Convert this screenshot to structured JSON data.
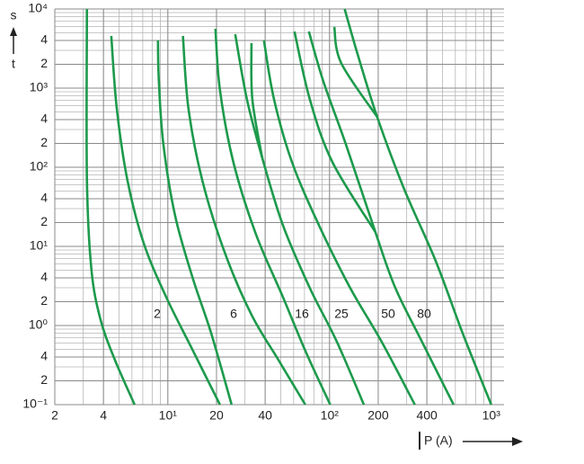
{
  "chart_data": {
    "type": "line",
    "log_x": true,
    "log_y": true,
    "grid": true,
    "color": "#1d9a4c",
    "x_label": "P (A)",
    "y_label_top": "s",
    "y_label_bottom": "t",
    "xlim": [
      2,
      1200
    ],
    "ylim": [
      0.1,
      10000
    ],
    "xticks": [
      2,
      4,
      {
        "value": 10,
        "label": "10¹"
      },
      20,
      40,
      {
        "value": 100,
        "label": "10²"
      },
      200,
      400,
      {
        "value": 1000,
        "label": "10³"
      }
    ],
    "yticks": [
      {
        "value": 0.1,
        "label": "10⁻¹"
      },
      {
        "value": 0.2,
        "label": "2"
      },
      {
        "value": 0.4,
        "label": "4"
      },
      {
        "value": 1,
        "label": "10⁰"
      },
      2,
      4,
      {
        "value": 10,
        "label": "10¹"
      },
      {
        "value": 20,
        "label": "2"
      },
      {
        "value": 40,
        "label": "4"
      },
      {
        "value": 100,
        "label": "10²"
      },
      {
        "value": 200,
        "label": "2"
      },
      {
        "value": 400,
        "label": "4"
      },
      {
        "value": 1000,
        "label": "10³"
      },
      {
        "value": 2000,
        "label": "2"
      },
      {
        "value": 4000,
        "label": "4"
      },
      {
        "value": 10000,
        "label": "10⁴"
      }
    ],
    "annotations": [
      "2",
      "6",
      "16",
      "25",
      "50",
      "80"
    ],
    "series": [
      {
        "x": [
          3.16,
          3.16,
          3.37,
          3.83,
          4.7,
          6.23
        ],
        "values": [
          10000,
          69.4,
          5.07,
          1.2,
          0.37,
          0.1
        ]
      },
      {
        "x": [
          4.47,
          4.83,
          5.62,
          7.08,
          9.75,
          14.3,
          21.0
        ],
        "values": [
          4560,
          562,
          69.4,
          11.1,
          2.31,
          0.481,
          0.1
        ]
      },
      {
        "x": [
          8.69,
          8.8,
          9.38,
          11.1,
          14.3,
          18.5,
          24.8
        ],
        "values": [
          4000,
          1230,
          197,
          24.3,
          3.9,
          0.81,
          0.1
        ]
      },
      {
        "x": [
          12.4,
          13.4,
          16.3,
          22.4,
          32.9,
          48.2,
          70.8
        ],
        "values": [
          4560,
          562,
          69.4,
          8.55,
          1.37,
          0.37,
          0.1
        ]
      },
      {
        "x": [
          19.7,
          21.0,
          25.4,
          35.0,
          51.4,
          70.8,
          101
        ],
        "values": [
          5620,
          950,
          117,
          14.4,
          2.31,
          0.481,
          0.1
        ]
      },
      {
        "x": [
          26.1,
          30.8,
          38.3,
          51.4,
          75.4,
          111,
          163
        ],
        "values": [
          4810,
          731,
          133,
          18.7,
          3.0,
          0.624,
          0.1
        ]
      },
      {
        "x": [
          32.9,
          33.3,
          38.3
        ],
        "values": [
          3700,
          731,
          133
        ]
      },
      {
        "x": [
          39.3,
          45.3,
          58.5,
          85.8,
          134,
          210,
          337
        ],
        "values": [
          4000,
          731,
          117,
          18.7,
          3.0,
          0.624,
          0.1
        ]
      },
      {
        "x": [
          60.7,
          75.4,
          104,
          192
        ],
        "values": [
          5200,
          731,
          117,
          15.2
        ]
      },
      {
        "x": [
          74.5,
          91.4,
          126,
          192,
          255,
          373,
          585
        ],
        "values": [
          5200,
          1230,
          197,
          15.2,
          3.0,
          0.624,
          0.1
        ]
      },
      {
        "x": [
          107,
          118,
          197
        ],
        "values": [
          5930,
          2080,
          433
        ]
      },
      {
        "x": [
          124,
          149,
          197,
          289,
          453,
          664,
          1000
        ],
        "values": [
          10000,
          2700,
          433,
          53.4,
          6.58,
          0.81,
          0.1
        ]
      }
    ]
  }
}
